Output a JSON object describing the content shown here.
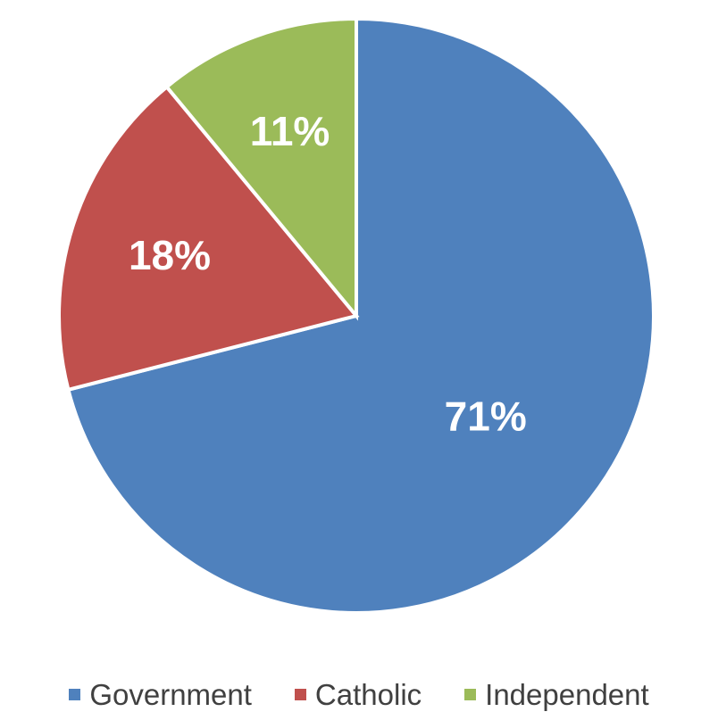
{
  "chart_data": {
    "type": "pie",
    "categories": [
      "Government",
      "Catholic",
      "Independent"
    ],
    "values": [
      71,
      18,
      11
    ],
    "data_labels": [
      "71%",
      "18%",
      "11%"
    ],
    "colors": [
      "#4F81BD",
      "#C0504D",
      "#9BBB59"
    ],
    "start_angle_deg": 0,
    "direction": "clockwise",
    "legend_position": "bottom",
    "title": ""
  }
}
